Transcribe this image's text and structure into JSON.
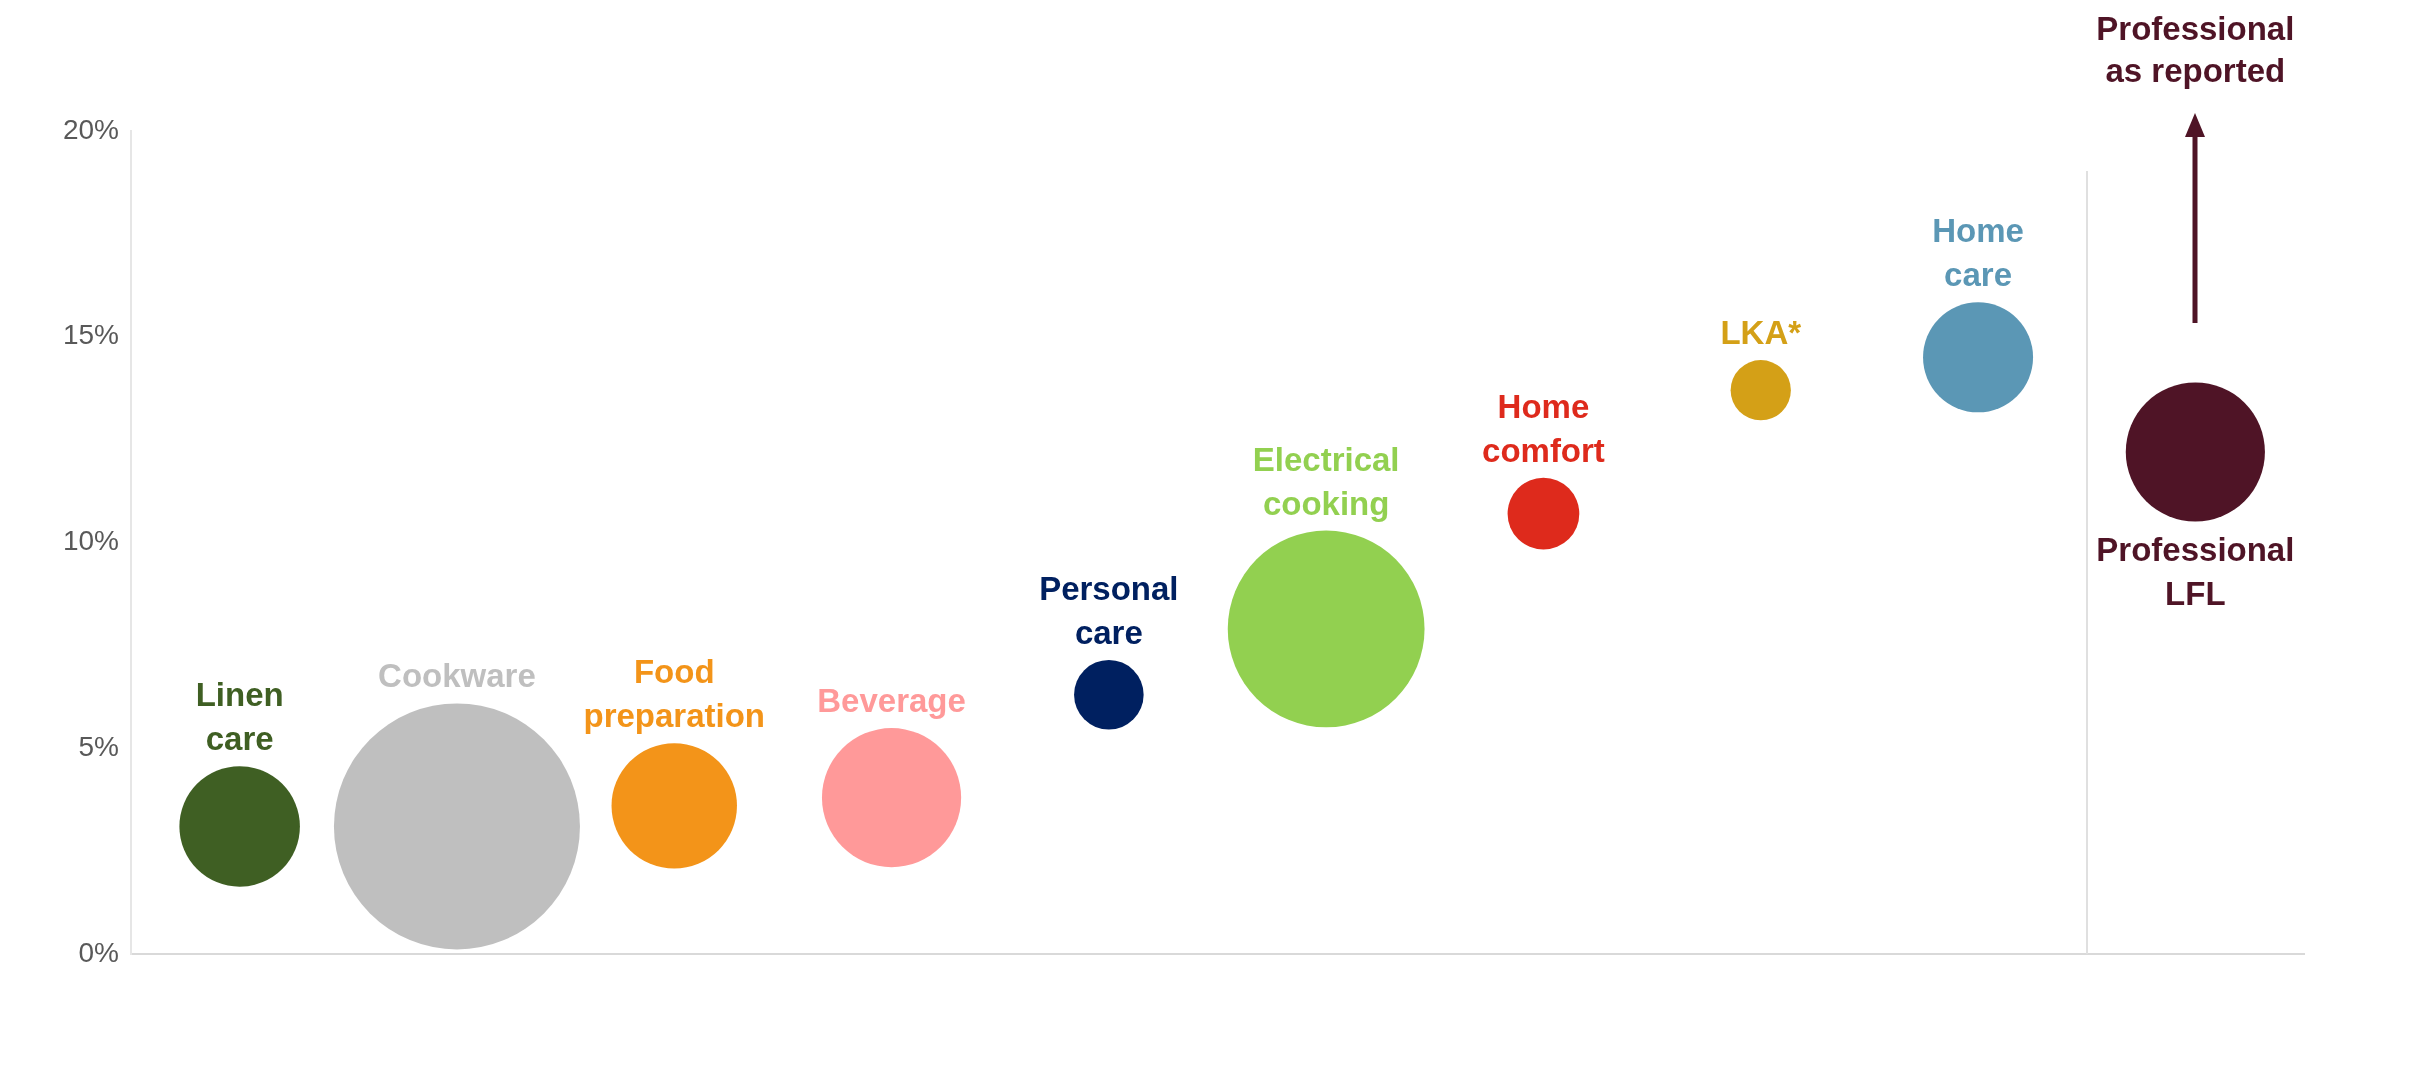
{
  "chart_data": {
    "type": "bubble",
    "categories": [
      null,
      null,
      null,
      null,
      null,
      null,
      null,
      null,
      null,
      null
    ],
    "series": [
      {
        "name": "Linen care",
        "color": "#3f5f23",
        "values": [
          3.1,
          null,
          null,
          null,
          null,
          null,
          null,
          null,
          null,
          null
        ],
        "sizes": [
          0.24,
          null,
          null,
          null,
          null,
          null,
          null,
          null,
          null,
          null
        ]
      },
      {
        "name": "Cookware",
        "color": "#bfbfbf",
        "values": [
          null,
          3.1,
          null,
          null,
          null,
          null,
          null,
          null,
          null,
          null
        ],
        "sizes": [
          null,
          1,
          null,
          null,
          null,
          null,
          null,
          null,
          null,
          null
        ]
      },
      {
        "name": "Food preparation",
        "color": "#f39419",
        "values": [
          null,
          null,
          3.6,
          null,
          null,
          null,
          null,
          null,
          null,
          null
        ],
        "sizes": [
          null,
          null,
          0.26,
          null,
          null,
          null,
          null,
          null,
          null,
          null
        ]
      },
      {
        "name": "Beverage",
        "color": "#ff9999",
        "values": [
          null,
          null,
          null,
          3.8,
          null,
          null,
          null,
          null,
          null,
          null
        ],
        "sizes": [
          null,
          null,
          null,
          0.32,
          null,
          null,
          null,
          null,
          null,
          null
        ]
      },
      {
        "name": "Personal care",
        "color": "#002060",
        "values": [
          null,
          null,
          null,
          null,
          6.3,
          null,
          null,
          null,
          null,
          null
        ],
        "sizes": [
          null,
          null,
          null,
          null,
          0.08,
          null,
          null,
          null,
          null,
          null
        ]
      },
      {
        "name": "Electrical cooking",
        "color": "#92d050",
        "values": [
          null,
          null,
          null,
          null,
          null,
          7.9,
          null,
          null,
          null,
          null
        ],
        "sizes": [
          null,
          null,
          null,
          null,
          null,
          0.64,
          null,
          null,
          null,
          null
        ]
      },
      {
        "name": "Home comfort",
        "color": "#de2a1c",
        "values": [
          null,
          null,
          null,
          null,
          null,
          null,
          10.7,
          null,
          null,
          null
        ],
        "sizes": [
          null,
          null,
          null,
          null,
          null,
          null,
          0.085,
          null,
          null,
          null
        ]
      },
      {
        "name": "LKA*",
        "color": "#d4a017",
        "values": [
          null,
          null,
          null,
          null,
          null,
          null,
          null,
          13.7,
          null,
          null
        ],
        "sizes": [
          null,
          null,
          null,
          null,
          null,
          null,
          null,
          0.06,
          null,
          null
        ]
      },
      {
        "name": "Home care",
        "color": "#5b97b5",
        "values": [
          null,
          null,
          null,
          null,
          null,
          null,
          null,
          null,
          14.5,
          null
        ],
        "sizes": [
          null,
          null,
          null,
          null,
          null,
          null,
          null,
          null,
          0.2,
          null
        ]
      },
      {
        "name": "Professional LFL",
        "color": "#4f1426",
        "values": [
          null,
          null,
          null,
          null,
          null,
          null,
          null,
          null,
          null,
          12.2
        ],
        "sizes": [
          null,
          null,
          null,
          null,
          null,
          null,
          null,
          null,
          null,
          0.32
        ]
      }
    ],
    "annotations": [
      "Professional as reported"
    ],
    "ylim": [
      0,
      20
    ],
    "yticks": [
      {
        "value": 0,
        "label": "0%"
      },
      {
        "value": 5,
        "label": "5%"
      },
      {
        "value": 10,
        "label": "10%"
      },
      {
        "value": 15,
        "label": "15%"
      },
      {
        "value": 20,
        "label": "20%"
      }
    ],
    "tick_labels": "y",
    "grid": false,
    "legend": false
  }
}
